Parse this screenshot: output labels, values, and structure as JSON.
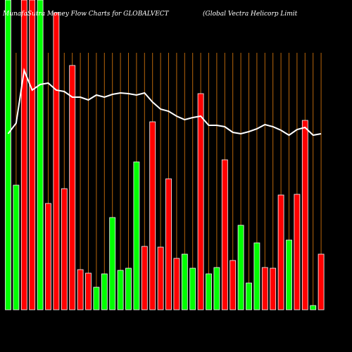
{
  "chart_data": {
    "type": "bar",
    "title": "MunafaSutra  Money Flow  Charts for GLOBALVECT",
    "subtitle": "(Global Vectra  Helicorp Limit",
    "categories": [
      null,
      null,
      null,
      null,
      null,
      null,
      null,
      null,
      null,
      null,
      null,
      null,
      null,
      null,
      null,
      null,
      null,
      null,
      null,
      null,
      null,
      null,
      null,
      null,
      null,
      null,
      null,
      null,
      null,
      null,
      null,
      null,
      null,
      null,
      null,
      null,
      null,
      null,
      null,
      null
    ],
    "values": [
      440,
      177,
      440,
      440,
      440,
      151,
      422,
      172,
      347,
      57,
      52,
      32,
      51,
      131,
      56,
      59,
      210,
      90,
      267,
      89,
      186,
      73,
      79,
      59,
      307,
      51,
      60,
      213,
      70,
      120,
      38,
      95,
      60,
      59,
      163,
      99,
      164,
      269,
      6,
      79
    ],
    "colors": [
      "#00ff00",
      "#00ff00",
      "#ff0000",
      "#ff0000",
      "#00ff00",
      "#ff0000",
      "#ff0000",
      "#ff0000",
      "#ff0000",
      "#ff0000",
      "#ff0000",
      "#00ff00",
      "#00ff00",
      "#00ff00",
      "#00ff00",
      "#00ff00",
      "#00ff00",
      "#ff0000",
      "#ff0000",
      "#ff0000",
      "#ff0000",
      "#ff0000",
      "#00ff00",
      "#00ff00",
      "#ff0000",
      "#00ff00",
      "#00ff00",
      "#ff0000",
      "#ff0000",
      "#00ff00",
      "#00ff00",
      "#00ff00",
      "#ff0000",
      "#ff0000",
      "#ff0000",
      "#00ff00",
      "#ff0000",
      "#ff0000",
      "#00ff00",
      "#ff0000"
    ],
    "line": {
      "color": "#ffffff",
      "values": [
        250,
        265,
        340,
        312,
        320,
        322,
        312,
        310,
        302,
        302,
        298,
        305,
        302,
        306,
        308,
        307,
        305,
        308,
        295,
        285,
        282,
        275,
        270,
        273,
        275,
        262,
        262,
        260,
        252,
        250,
        253,
        257,
        263,
        260,
        255,
        248,
        256,
        259,
        248,
        250
      ]
    },
    "guide_color": "#b8660b",
    "ylim": [
      0,
      440
    ]
  }
}
